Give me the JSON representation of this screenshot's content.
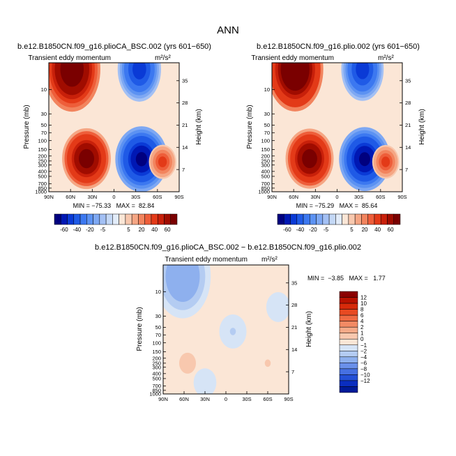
{
  "page": {
    "title": "ANN"
  },
  "chart_data": [
    {
      "id": "left",
      "type": "heatmap",
      "title": "b.e12.B1850CN.f09_g16.plioCA_BSC.002 (yrs 601−650)",
      "subtitle_left": "Transient eddy momentum",
      "subtitle_right": "m²/s²",
      "xlabel": "",
      "ylabel": "Pressure (mb)",
      "ylabel_right": "Height (km)",
      "x_ticks": [
        "90N",
        "60N",
        "30N",
        "0",
        "30S",
        "60S",
        "90S"
      ],
      "y_ticks": [
        "10",
        "30",
        "50",
        "70",
        "100",
        "150",
        "200",
        "250",
        "300",
        "400",
        "500",
        "700",
        "850",
        "1000"
      ],
      "y_ticks_right": [
        "35",
        "28",
        "21",
        "14",
        "7"
      ],
      "xlim": [
        90,
        -90
      ],
      "ylim_mb": [
        1000,
        3
      ],
      "stats": "MIN = −75.33   MAX =  82.84",
      "min": -75.33,
      "max": 82.84,
      "features": [
        {
          "lat": 58,
          "p_mb": 4,
          "value": 80
        },
        {
          "lat": 38,
          "p_mb": 225,
          "value": 65
        },
        {
          "lat": -35,
          "p_mb": 4,
          "value": -55
        },
        {
          "lat": -38,
          "p_mb": 230,
          "value": -72
        },
        {
          "lat": -67,
          "p_mb": 260,
          "value": 25
        }
      ]
    },
    {
      "id": "right",
      "type": "heatmap",
      "title": "b.e12.B1850CN.f09_g16.plio.002 (yrs 601−650)",
      "subtitle_left": "Transient eddy momentum",
      "subtitle_right": "m²/s²",
      "xlabel": "",
      "ylabel": "Pressure (mb)",
      "ylabel_right": "Height (km)",
      "x_ticks": [
        "90N",
        "60N",
        "30N",
        "0",
        "30S",
        "60S",
        "90S"
      ],
      "y_ticks": [
        "10",
        "30",
        "50",
        "70",
        "100",
        "150",
        "200",
        "250",
        "300",
        "400",
        "500",
        "700",
        "850",
        "1000"
      ],
      "y_ticks_right": [
        "35",
        "28",
        "21",
        "14",
        "7"
      ],
      "xlim": [
        90,
        -90
      ],
      "ylim_mb": [
        1000,
        3
      ],
      "stats": "MIN = −75.29   MAX =  85.64",
      "min": -75.29,
      "max": 85.64,
      "features": [
        {
          "lat": 58,
          "p_mb": 4,
          "value": 82
        },
        {
          "lat": 38,
          "p_mb": 225,
          "value": 66
        },
        {
          "lat": -35,
          "p_mb": 4,
          "value": -55
        },
        {
          "lat": -38,
          "p_mb": 230,
          "value": -72
        },
        {
          "lat": -67,
          "p_mb": 260,
          "value": 25
        }
      ]
    },
    {
      "id": "diff",
      "type": "heatmap",
      "title": "b.e12.B1850CN.f09_g16.plioCA_BSC.002 − b.e12.B1850CN.f09_g16.plio.002",
      "subtitle_left": "Transient eddy momentum",
      "subtitle_right": "m²/s²",
      "xlabel": "",
      "ylabel": "Pressure (mb)",
      "ylabel_right": "Height (km)",
      "x_ticks": [
        "90N",
        "60N",
        "30N",
        "0",
        "30S",
        "60S",
        "90S"
      ],
      "y_ticks": [
        "10",
        "30",
        "50",
        "70",
        "100",
        "150",
        "200",
        "250",
        "300",
        "400",
        "500",
        "700",
        "850",
        "1000"
      ],
      "y_ticks_right": [
        "35",
        "28",
        "21",
        "14",
        "7"
      ],
      "xlim": [
        90,
        -90
      ],
      "ylim_mb": [
        1000,
        3
      ],
      "stats": "MIN =  −3.85   MAX =   1.77",
      "min": -3.85,
      "max": 1.77,
      "features": [
        {
          "lat": 62,
          "p_mb": 5,
          "value": -3.8
        },
        {
          "lat": 55,
          "p_mb": 250,
          "value": 1.7
        },
        {
          "lat": -60,
          "p_mb": 250,
          "value": 1.2
        },
        {
          "lat": -10,
          "p_mb": 60,
          "value": -1.2
        },
        {
          "lat": 30,
          "p_mb": 600,
          "value": -0.8
        },
        {
          "lat": -75,
          "p_mb": 20,
          "value": -0.9
        }
      ]
    }
  ],
  "colorbars": {
    "main": {
      "levels": [
        "-60",
        "-40",
        "-20",
        "-5",
        "5",
        "20",
        "40",
        "60"
      ],
      "colors": [
        "#00007f",
        "#0018b4",
        "#0a3ad6",
        "#1f5ae6",
        "#3c78f0",
        "#5c92f2",
        "#7ea8f3",
        "#a3c0f4",
        "#c4d8f6",
        "#e2ecfa",
        "#fbe6d6",
        "#f8c8ae",
        "#f5a684",
        "#f2845e",
        "#ee5e3a",
        "#e33a18",
        "#c8200a",
        "#a00c00",
        "#7a0000"
      ]
    },
    "diff": {
      "levels": [
        "12",
        "10",
        "8",
        "6",
        "4",
        "2",
        "1",
        "0",
        "−1",
        "−2",
        "−4",
        "−6",
        "−8",
        "−10",
        "−12"
      ],
      "colors": [
        "#8a0000",
        "#b81200",
        "#d62a0a",
        "#e84a22",
        "#ef6a42",
        "#f28a64",
        "#f5aa88",
        "#f8c8ae",
        "#fbe6d6",
        "#d6e4f6",
        "#b4ccf2",
        "#8eb0ee",
        "#6a90ea",
        "#4670e2",
        "#2450d6",
        "#0a2ec0",
        "#001a98"
      ]
    }
  }
}
